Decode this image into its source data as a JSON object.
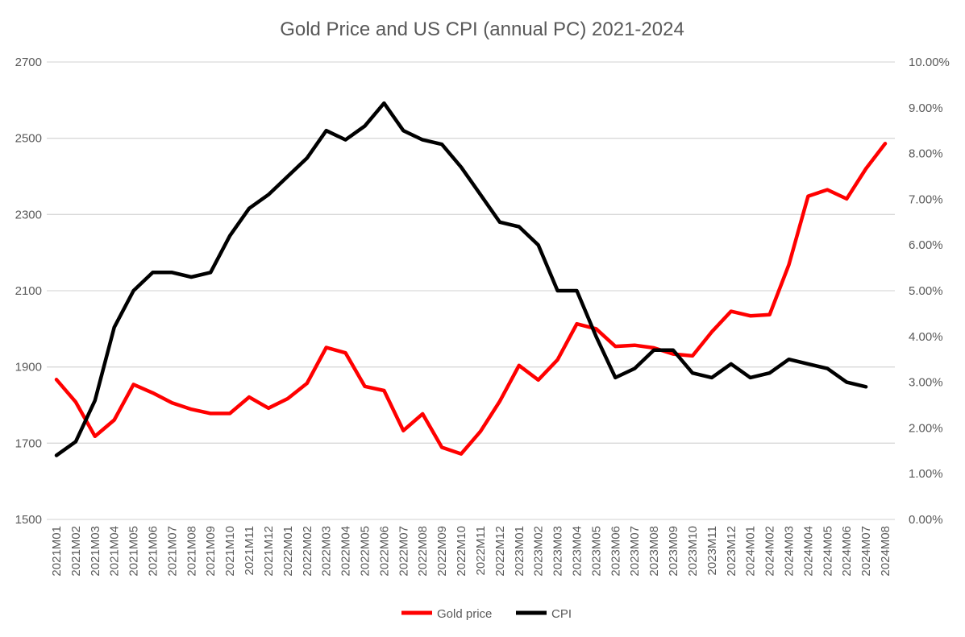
{
  "chart_data": {
    "type": "line",
    "title": "Gold Price and US CPI (annual PC) 2021-2024",
    "categories": [
      "2021M01",
      "2021M02",
      "2021M03",
      "2021M04",
      "2021M05",
      "2021M06",
      "2021M07",
      "2021M08",
      "2021M09",
      "2021M10",
      "2021M11",
      "2021M12",
      "2022M01",
      "2022M02",
      "2022M03",
      "2022M04",
      "2022M05",
      "2022M06",
      "2022M07",
      "2022M08",
      "2022M09",
      "2022M10",
      "2022M11",
      "2022M12",
      "2023M01",
      "2023M02",
      "2023M03",
      "2023M04",
      "2023M05",
      "2023M06",
      "2023M07",
      "2023M08",
      "2023M09",
      "2023M10",
      "2023M11",
      "2023M12",
      "2024M01",
      "2024M02",
      "2024M03",
      "2024M04",
      "2024M05",
      "2024M06",
      "2024M07",
      "2024M08"
    ],
    "y_left": {
      "min": 1500,
      "max": 2700,
      "ticks": [
        1500,
        1700,
        1900,
        2100,
        2300,
        2500,
        2700
      ],
      "tick_labels": [
        "1500",
        "1700",
        "1900",
        "2100",
        "2300",
        "2500",
        "2700"
      ]
    },
    "y_right": {
      "min": 0,
      "max": 10,
      "ticks": [
        0,
        1,
        2,
        3,
        4,
        5,
        6,
        7,
        8,
        9,
        10
      ],
      "tick_labels": [
        "0.00%",
        "1.00%",
        "2.00%",
        "3.00%",
        "4.00%",
        "5.00%",
        "6.00%",
        "7.00%",
        "8.00%",
        "9.00%",
        "10.00%"
      ]
    },
    "grid": true,
    "legend_position": "bottom",
    "series": [
      {
        "name": "Gold price",
        "axis": "left",
        "color": "#ff0000",
        "values": [
          1867,
          1808,
          1718,
          1761,
          1854,
          1832,
          1806,
          1789,
          1778,
          1778,
          1821,
          1792,
          1817,
          1857,
          1951,
          1937,
          1849,
          1838,
          1733,
          1777,
          1689,
          1672,
          1731,
          1810,
          1904,
          1866,
          1919,
          2013,
          2000,
          1954,
          1957,
          1950,
          1934,
          1929,
          1992,
          2046,
          2034,
          2037,
          2168,
          2348,
          2365,
          2341,
          2420,
          2486
        ]
      },
      {
        "name": "CPI",
        "axis": "right",
        "color": "#000000",
        "values": [
          1.4,
          1.7,
          2.6,
          4.2,
          5.0,
          5.4,
          5.4,
          5.3,
          5.4,
          6.2,
          6.8,
          7.1,
          7.5,
          7.9,
          8.5,
          8.3,
          8.6,
          9.1,
          8.5,
          8.3,
          8.2,
          7.7,
          7.1,
          6.5,
          6.4,
          6.0,
          5.0,
          5.0,
          4.0,
          3.1,
          3.3,
          3.7,
          3.7,
          3.2,
          3.1,
          3.4,
          3.1,
          3.2,
          3.5,
          3.4,
          3.3,
          3.0,
          2.9,
          null
        ]
      }
    ]
  }
}
